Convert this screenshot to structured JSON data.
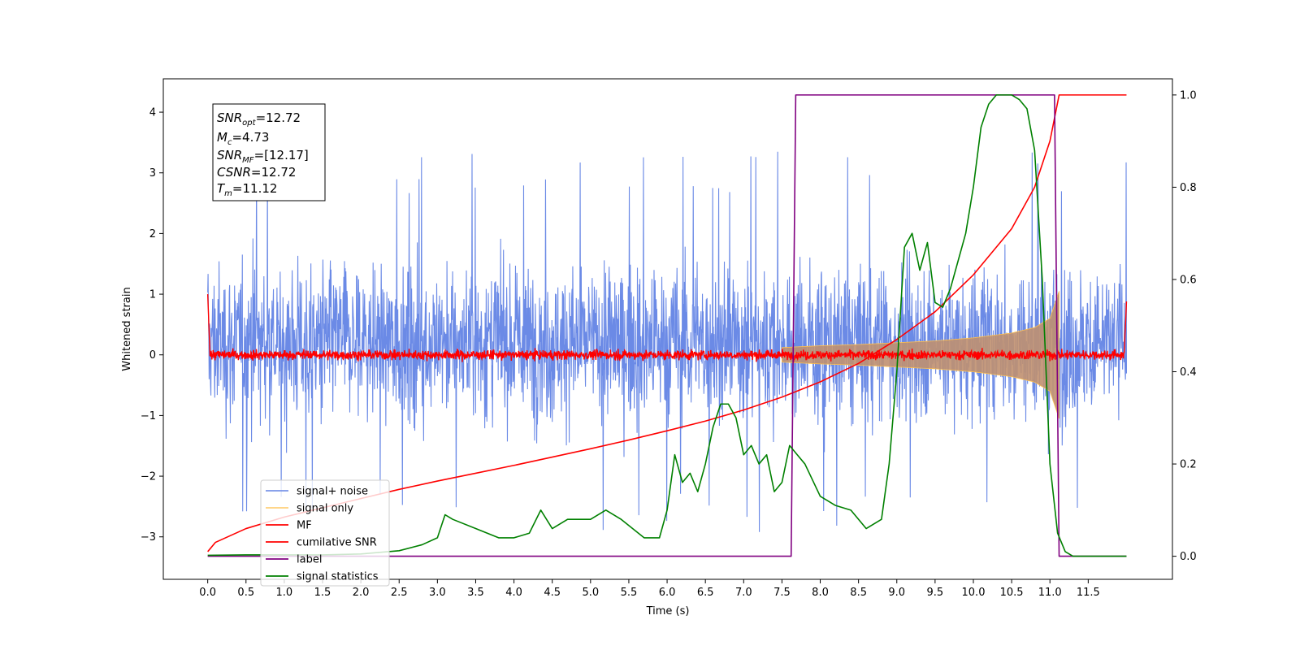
{
  "chart_data": {
    "type": "line",
    "xlabel": "Time (s)",
    "ylabel": "Whitened strain",
    "xlim": [
      -0.58,
      12.6
    ],
    "ylim": [
      -3.7,
      4.55
    ],
    "ylim_right": [
      -0.05,
      1.035
    ],
    "x_ticks": [
      "0.0",
      "0.5",
      "1.0",
      "1.5",
      "2.0",
      "2.5",
      "3.0",
      "3.5",
      "4.0",
      "4.5",
      "5.0",
      "5.5",
      "6.0",
      "6.5",
      "7.0",
      "7.5",
      "8.0",
      "8.5",
      "9.0",
      "9.5",
      "10.0",
      "10.5",
      "11.0",
      "11.5"
    ],
    "y_ticks_left": [
      "−3",
      "−2",
      "−1",
      "0",
      "1",
      "2",
      "3",
      "4"
    ],
    "y_ticks_right": [
      "0.0",
      "0.2",
      "0.4",
      "0.6",
      "0.8",
      "1.0"
    ],
    "annotation": {
      "snr_opt": {
        "main": "SNR",
        "sub": "opt",
        "value": "=12.72"
      },
      "mc": {
        "main": "M",
        "sub": "c",
        "value": "=4.73"
      },
      "snr_mf": {
        "main": "SNR",
        "sub": "MF",
        "value": "=[12.17]"
      },
      "csnr": {
        "main": "CSNR",
        "value": "=12.72"
      },
      "tm": {
        "main": "T",
        "sub": "m",
        "value": "=11.12"
      }
    },
    "legend_position": "lower-left",
    "series": [
      {
        "name": "signal+ noise",
        "color": "#6b8ae6",
        "axis": "left",
        "description": "dense noisy signal, roughly between -2.5 and 2.5 with spikes to ±3.3",
        "x_range": [
          0.0,
          12.0
        ],
        "center": 0.2,
        "typical_amplitude": 1.6,
        "peak_amplitude": 3.2
      },
      {
        "name": "signal only",
        "color": "#ffc04d",
        "axis": "left",
        "description": "chirp growing in amplitude from about 7.5 s to 11.12 s",
        "x": [
          7.5,
          8.0,
          8.5,
          9.0,
          9.5,
          10.0,
          10.5,
          10.8,
          11.0,
          11.12
        ],
        "envelope": [
          0.12,
          0.15,
          0.17,
          0.2,
          0.23,
          0.28,
          0.36,
          0.45,
          0.6,
          1.05
        ]
      },
      {
        "name": "MF",
        "color": "#ff0000",
        "axis": "left",
        "description": "matched-filter output, thin noisy band around 0",
        "x_range": [
          0.0,
          12.0
        ],
        "center": 0.0,
        "typical_amplitude": 0.08,
        "edge_values": {
          "start": 1.0,
          "end": 0.88
        }
      },
      {
        "name": "cumilative SNR",
        "color": "#ff0000",
        "axis": "right",
        "x": [
          0.0,
          0.1,
          0.5,
          1.0,
          1.5,
          2.0,
          2.5,
          3.0,
          3.5,
          4.0,
          4.5,
          5.0,
          5.5,
          6.0,
          6.5,
          7.0,
          7.5,
          8.0,
          8.5,
          9.0,
          9.5,
          10.0,
          10.5,
          10.8,
          11.0,
          11.12,
          12.0
        ],
        "values": [
          0.01,
          0.03,
          0.06,
          0.085,
          0.105,
          0.125,
          0.145,
          0.163,
          0.18,
          0.197,
          0.215,
          0.233,
          0.252,
          0.272,
          0.293,
          0.317,
          0.345,
          0.378,
          0.418,
          0.47,
          0.53,
          0.61,
          0.71,
          0.8,
          0.9,
          1.0,
          1.0
        ]
      },
      {
        "name": "label",
        "color": "#800080",
        "axis": "right",
        "x": [
          0.0,
          7.62,
          7.68,
          11.06,
          11.12,
          12.0
        ],
        "values": [
          0.0,
          0.0,
          1.0,
          1.0,
          0.0,
          0.0
        ]
      },
      {
        "name": "signal statistics",
        "color": "#008000",
        "axis": "right",
        "x": [
          0.0,
          0.5,
          1.0,
          1.5,
          2.0,
          2.5,
          2.8,
          3.0,
          3.1,
          3.2,
          3.5,
          3.8,
          4.0,
          4.2,
          4.35,
          4.5,
          4.7,
          5.0,
          5.2,
          5.4,
          5.7,
          5.9,
          6.0,
          6.1,
          6.2,
          6.3,
          6.4,
          6.5,
          6.6,
          6.7,
          6.8,
          6.9,
          7.0,
          7.1,
          7.2,
          7.3,
          7.4,
          7.5,
          7.6,
          7.7,
          7.8,
          8.0,
          8.2,
          8.4,
          8.6,
          8.8,
          8.9,
          9.0,
          9.1,
          9.2,
          9.3,
          9.4,
          9.5,
          9.6,
          9.7,
          9.8,
          9.9,
          10.0,
          10.1,
          10.2,
          10.3,
          10.4,
          10.5,
          10.6,
          10.7,
          10.8,
          10.9,
          11.0,
          11.1,
          11.2,
          11.3,
          11.5,
          12.0
        ],
        "values": [
          0.002,
          0.003,
          0.003,
          0.003,
          0.005,
          0.012,
          0.025,
          0.04,
          0.09,
          0.08,
          0.06,
          0.04,
          0.04,
          0.05,
          0.1,
          0.06,
          0.08,
          0.08,
          0.1,
          0.08,
          0.04,
          0.04,
          0.1,
          0.22,
          0.16,
          0.18,
          0.14,
          0.2,
          0.28,
          0.33,
          0.33,
          0.3,
          0.22,
          0.24,
          0.2,
          0.22,
          0.14,
          0.16,
          0.24,
          0.22,
          0.2,
          0.13,
          0.11,
          0.1,
          0.06,
          0.08,
          0.2,
          0.4,
          0.67,
          0.7,
          0.62,
          0.68,
          0.55,
          0.54,
          0.58,
          0.64,
          0.7,
          0.8,
          0.93,
          0.98,
          1.0,
          1.0,
          1.0,
          0.99,
          0.97,
          0.88,
          0.6,
          0.2,
          0.05,
          0.01,
          0.0,
          0.0,
          0.0
        ]
      }
    ]
  }
}
